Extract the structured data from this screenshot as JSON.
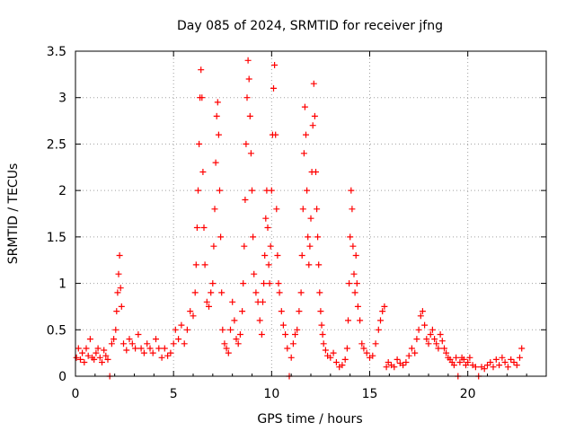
{
  "chart_data": {
    "type": "scatter",
    "title": "Day 085 of 2024, SRMTID for receiver jfng",
    "xlabel": "GPS time / hours",
    "ylabel": "SRMTID / TECUs",
    "xlim": [
      0,
      24
    ],
    "ylim": [
      0,
      3.5
    ],
    "x_ticks": [
      0,
      5,
      10,
      15,
      20
    ],
    "x_tick_labels": [
      "0",
      "5",
      "10",
      "15",
      "20"
    ],
    "y_ticks": [
      0,
      0.5,
      1,
      1.5,
      2,
      2.5,
      3,
      3.5
    ],
    "y_tick_labels": [
      "0",
      "0.5",
      "1",
      "1.5",
      "2",
      "2.5",
      "3",
      "3.5"
    ],
    "grid": true,
    "marker": "+",
    "series_color": "#ff0000",
    "series": [
      {
        "name": "SRMTID",
        "points": [
          [
            0.05,
            0.2
          ],
          [
            0.15,
            0.3
          ],
          [
            0.25,
            0.18
          ],
          [
            0.35,
            0.25
          ],
          [
            0.45,
            0.15
          ],
          [
            0.55,
            0.3
          ],
          [
            0.65,
            0.22
          ],
          [
            0.75,
            0.4
          ],
          [
            0.85,
            0.2
          ],
          [
            0.95,
            0.18
          ],
          [
            1.05,
            0.25
          ],
          [
            1.15,
            0.3
          ],
          [
            1.25,
            0.2
          ],
          [
            1.35,
            0.15
          ],
          [
            1.45,
            0.28
          ],
          [
            1.55,
            0.22
          ],
          [
            1.65,
            0.18
          ],
          [
            1.75,
            0.0
          ],
          [
            1.85,
            0.35
          ],
          [
            1.95,
            0.4
          ],
          [
            2.05,
            0.5
          ],
          [
            2.1,
            0.7
          ],
          [
            2.15,
            0.9
          ],
          [
            2.2,
            1.1
          ],
          [
            2.25,
            1.3
          ],
          [
            2.3,
            0.95
          ],
          [
            2.35,
            0.75
          ],
          [
            2.45,
            0.35
          ],
          [
            2.6,
            0.28
          ],
          [
            2.75,
            0.4
          ],
          [
            2.9,
            0.35
          ],
          [
            3.05,
            0.3
          ],
          [
            3.2,
            0.45
          ],
          [
            3.35,
            0.3
          ],
          [
            3.5,
            0.25
          ],
          [
            3.65,
            0.35
          ],
          [
            3.8,
            0.3
          ],
          [
            3.95,
            0.25
          ],
          [
            4.1,
            0.4
          ],
          [
            4.25,
            0.3
          ],
          [
            4.4,
            0.2
          ],
          [
            4.55,
            0.3
          ],
          [
            4.7,
            0.22
          ],
          [
            4.85,
            0.25
          ],
          [
            5.0,
            0.35
          ],
          [
            5.1,
            0.5
          ],
          [
            5.25,
            0.4
          ],
          [
            5.4,
            0.55
          ],
          [
            5.55,
            0.35
          ],
          [
            5.7,
            0.5
          ],
          [
            5.85,
            0.7
          ],
          [
            6.0,
            0.65
          ],
          [
            6.1,
            0.9
          ],
          [
            6.15,
            1.2
          ],
          [
            6.2,
            1.6
          ],
          [
            6.25,
            2.0
          ],
          [
            6.3,
            2.5
          ],
          [
            6.35,
            3.0
          ],
          [
            6.4,
            3.3
          ],
          [
            6.45,
            3.0
          ],
          [
            6.5,
            2.2
          ],
          [
            6.55,
            1.6
          ],
          [
            6.6,
            1.2
          ],
          [
            6.7,
            0.8
          ],
          [
            6.8,
            0.75
          ],
          [
            6.9,
            0.9
          ],
          [
            7.0,
            1.0
          ],
          [
            7.05,
            1.4
          ],
          [
            7.1,
            1.8
          ],
          [
            7.15,
            2.3
          ],
          [
            7.2,
            2.8
          ],
          [
            7.25,
            2.95
          ],
          [
            7.3,
            2.6
          ],
          [
            7.35,
            2.0
          ],
          [
            7.4,
            1.5
          ],
          [
            7.45,
            0.9
          ],
          [
            7.5,
            0.5
          ],
          [
            7.6,
            0.35
          ],
          [
            7.7,
            0.3
          ],
          [
            7.8,
            0.25
          ],
          [
            7.9,
            0.5
          ],
          [
            8.0,
            0.8
          ],
          [
            8.1,
            0.6
          ],
          [
            8.2,
            0.4
          ],
          [
            8.3,
            0.35
          ],
          [
            8.4,
            0.45
          ],
          [
            8.5,
            0.7
          ],
          [
            8.55,
            1.0
          ],
          [
            8.6,
            1.4
          ],
          [
            8.65,
            1.9
          ],
          [
            8.7,
            2.5
          ],
          [
            8.75,
            3.0
          ],
          [
            8.8,
            3.4
          ],
          [
            8.85,
            3.2
          ],
          [
            8.9,
            2.8
          ],
          [
            8.95,
            2.4
          ],
          [
            9.0,
            2.0
          ],
          [
            9.05,
            1.5
          ],
          [
            9.1,
            1.1
          ],
          [
            9.2,
            0.9
          ],
          [
            9.3,
            0.8
          ],
          [
            9.4,
            0.6
          ],
          [
            9.5,
            0.45
          ],
          [
            9.55,
            0.8
          ],
          [
            9.6,
            1.0
          ],
          [
            9.65,
            1.3
          ],
          [
            9.7,
            1.7
          ],
          [
            9.75,
            2.0
          ],
          [
            9.8,
            1.6
          ],
          [
            9.85,
            1.2
          ],
          [
            9.9,
            1.0
          ],
          [
            9.95,
            1.4
          ],
          [
            10.0,
            2.0
          ],
          [
            10.05,
            2.6
          ],
          [
            10.1,
            3.1
          ],
          [
            10.15,
            3.35
          ],
          [
            10.2,
            2.6
          ],
          [
            10.25,
            1.8
          ],
          [
            10.3,
            1.3
          ],
          [
            10.35,
            1.0
          ],
          [
            10.4,
            0.9
          ],
          [
            10.5,
            0.7
          ],
          [
            10.6,
            0.55
          ],
          [
            10.7,
            0.45
          ],
          [
            10.8,
            0.3
          ],
          [
            10.9,
            0.0
          ],
          [
            11.0,
            0.2
          ],
          [
            11.1,
            0.35
          ],
          [
            11.2,
            0.45
          ],
          [
            11.3,
            0.5
          ],
          [
            11.4,
            0.7
          ],
          [
            11.5,
            0.9
          ],
          [
            11.55,
            1.3
          ],
          [
            11.6,
            1.8
          ],
          [
            11.65,
            2.4
          ],
          [
            11.7,
            2.9
          ],
          [
            11.75,
            2.6
          ],
          [
            11.8,
            2.0
          ],
          [
            11.85,
            1.5
          ],
          [
            11.9,
            1.2
          ],
          [
            11.95,
            1.4
          ],
          [
            12.0,
            1.7
          ],
          [
            12.05,
            2.2
          ],
          [
            12.1,
            2.7
          ],
          [
            12.15,
            3.15
          ],
          [
            12.2,
            2.8
          ],
          [
            12.25,
            2.2
          ],
          [
            12.3,
            1.8
          ],
          [
            12.35,
            1.5
          ],
          [
            12.4,
            1.2
          ],
          [
            12.45,
            0.9
          ],
          [
            12.5,
            0.7
          ],
          [
            12.55,
            0.55
          ],
          [
            12.6,
            0.45
          ],
          [
            12.65,
            0.35
          ],
          [
            12.75,
            0.28
          ],
          [
            12.85,
            0.22
          ],
          [
            13.0,
            0.2
          ],
          [
            13.15,
            0.25
          ],
          [
            13.3,
            0.15
          ],
          [
            13.45,
            0.1
          ],
          [
            13.6,
            0.12
          ],
          [
            13.75,
            0.18
          ],
          [
            13.85,
            0.3
          ],
          [
            13.9,
            0.6
          ],
          [
            13.95,
            1.0
          ],
          [
            14.0,
            1.5
          ],
          [
            14.05,
            2.0
          ],
          [
            14.1,
            1.8
          ],
          [
            14.15,
            1.4
          ],
          [
            14.2,
            1.1
          ],
          [
            14.25,
            0.9
          ],
          [
            14.3,
            1.3
          ],
          [
            14.35,
            1.0
          ],
          [
            14.4,
            0.75
          ],
          [
            14.5,
            0.6
          ],
          [
            14.6,
            0.35
          ],
          [
            14.7,
            0.3
          ],
          [
            14.85,
            0.25
          ],
          [
            15.0,
            0.2
          ],
          [
            15.15,
            0.22
          ],
          [
            15.3,
            0.35
          ],
          [
            15.45,
            0.5
          ],
          [
            15.55,
            0.6
          ],
          [
            15.65,
            0.7
          ],
          [
            15.75,
            0.75
          ],
          [
            15.85,
            0.1
          ],
          [
            15.95,
            0.15
          ],
          [
            16.1,
            0.12
          ],
          [
            16.25,
            0.1
          ],
          [
            16.4,
            0.18
          ],
          [
            16.55,
            0.14
          ],
          [
            16.7,
            0.12
          ],
          [
            16.85,
            0.15
          ],
          [
            17.0,
            0.22
          ],
          [
            17.15,
            0.3
          ],
          [
            17.3,
            0.25
          ],
          [
            17.4,
            0.4
          ],
          [
            17.5,
            0.5
          ],
          [
            17.6,
            0.65
          ],
          [
            17.7,
            0.7
          ],
          [
            17.8,
            0.55
          ],
          [
            17.9,
            0.4
          ],
          [
            18.0,
            0.35
          ],
          [
            18.1,
            0.45
          ],
          [
            18.2,
            0.5
          ],
          [
            18.3,
            0.4
          ],
          [
            18.4,
            0.35
          ],
          [
            18.5,
            0.3
          ],
          [
            18.6,
            0.45
          ],
          [
            18.7,
            0.38
          ],
          [
            18.8,
            0.3
          ],
          [
            18.9,
            0.25
          ],
          [
            19.0,
            0.2
          ],
          [
            19.1,
            0.18
          ],
          [
            19.2,
            0.15
          ],
          [
            19.3,
            0.12
          ],
          [
            19.4,
            0.2
          ],
          [
            19.5,
            0.0
          ],
          [
            19.6,
            0.15
          ],
          [
            19.7,
            0.2
          ],
          [
            19.8,
            0.18
          ],
          [
            19.9,
            0.12
          ],
          [
            20.0,
            0.15
          ],
          [
            20.1,
            0.2
          ],
          [
            20.25,
            0.12
          ],
          [
            20.4,
            0.1
          ],
          [
            20.55,
            0.0
          ],
          [
            20.7,
            0.1
          ],
          [
            20.85,
            0.08
          ],
          [
            21.0,
            0.12
          ],
          [
            21.15,
            0.15
          ],
          [
            21.3,
            0.1
          ],
          [
            21.45,
            0.18
          ],
          [
            21.6,
            0.12
          ],
          [
            21.75,
            0.2
          ],
          [
            21.9,
            0.15
          ],
          [
            22.05,
            0.1
          ],
          [
            22.2,
            0.18
          ],
          [
            22.35,
            0.15
          ],
          [
            22.5,
            0.12
          ],
          [
            22.65,
            0.2
          ],
          [
            22.75,
            0.3
          ]
        ]
      }
    ]
  }
}
